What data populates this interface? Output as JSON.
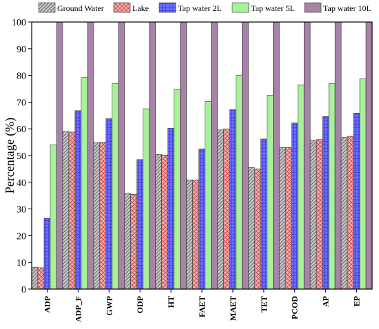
{
  "chart_data": {
    "type": "bar",
    "title": "",
    "xlabel": "",
    "ylabel": "Percentage (%)",
    "ylim": [
      0,
      100
    ],
    "yticks": [
      0,
      10,
      20,
      30,
      40,
      50,
      60,
      70,
      80,
      90,
      100
    ],
    "grid": false,
    "legend_position": "top",
    "categories": [
      "ADP",
      "ADP_F",
      "GWP",
      "ODP",
      "HT",
      "FAET",
      "MAET",
      "TET",
      "PCOD",
      "AP",
      "EP"
    ],
    "series": [
      {
        "name": "Ground Water",
        "color": "#c0c0c0",
        "pattern": "diagonal-hatch",
        "values": [
          8.2,
          59.0,
          54.8,
          35.8,
          50.4,
          40.9,
          59.6,
          45.5,
          53.0,
          55.8,
          56.8
        ]
      },
      {
        "name": "Lake",
        "color": "#f4a6a6",
        "pattern": "cross-hatch",
        "values": [
          8.0,
          58.8,
          55.0,
          35.5,
          50.2,
          40.8,
          60.0,
          45.0,
          53.0,
          56.0,
          57.2
        ]
      },
      {
        "name": "Tap water 2L",
        "color": "#6a6aff",
        "pattern": "grid",
        "values": [
          26.5,
          66.8,
          63.8,
          48.5,
          60.2,
          52.5,
          67.2,
          56.2,
          62.2,
          64.6,
          65.9
        ]
      },
      {
        "name": "Tap water 5L",
        "color": "#a8f09a",
        "pattern": "solid",
        "values": [
          54.0,
          79.2,
          77.0,
          67.5,
          74.9,
          70.3,
          80.0,
          72.5,
          76.5,
          77.0,
          78.7
        ]
      },
      {
        "name": "Tap water 10L",
        "color": "#a883a8",
        "pattern": "solid",
        "values": [
          100,
          100,
          100,
          100,
          100,
          100,
          100,
          100,
          100,
          100,
          100
        ]
      }
    ]
  }
}
